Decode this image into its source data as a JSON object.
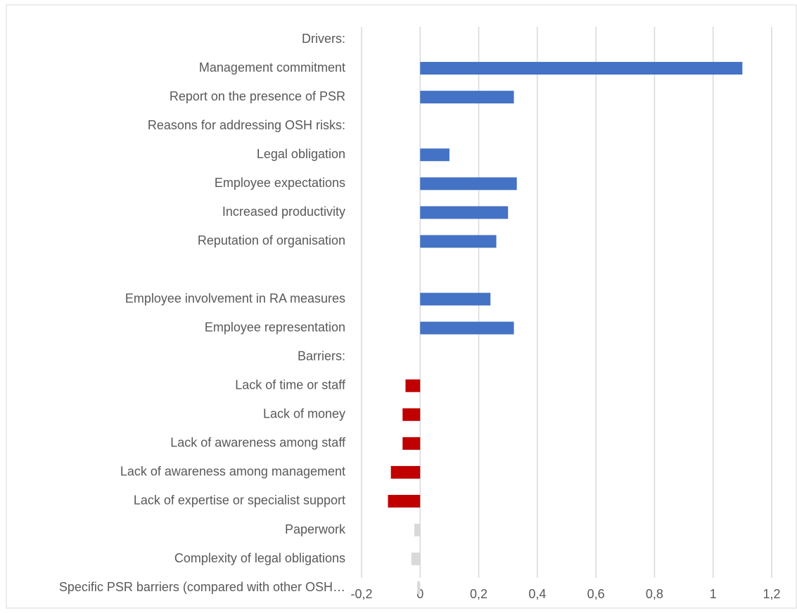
{
  "chart_data": {
    "type": "barh",
    "categories": [
      "Drivers:",
      "Management commitment",
      "Report on the presence of PSR",
      "Reasons for addressing OSH risks:",
      "Legal obligation",
      "Employee expectations",
      "Increased productivity",
      "Reputation of organisation",
      null,
      "Employee involvement in RA measures",
      "Employee representation",
      "Barriers:",
      "Lack of time or staff",
      "Lack of money",
      "Lack of awareness among staff",
      "Lack of awareness among management",
      "Lack of expertise or specialist support",
      "Paperwork",
      "Complexity of legal obligations",
      "Specific PSR barriers (compared with other OSH…"
    ],
    "values": [
      null,
      1.1,
      0.32,
      null,
      0.1,
      0.33,
      0.3,
      0.26,
      null,
      0.24,
      0.32,
      null,
      -0.05,
      -0.06,
      -0.06,
      -0.1,
      -0.11,
      -0.02,
      -0.03,
      -0.01
    ],
    "colors": [
      null,
      "#4472c4",
      "#4472c4",
      null,
      "#4472c4",
      "#4472c4",
      "#4472c4",
      "#4472c4",
      null,
      "#4472c4",
      "#4472c4",
      null,
      "#c00000",
      "#c00000",
      "#c00000",
      "#c00000",
      "#c00000",
      "#d9d9d9",
      "#d9d9d9",
      "#d9d9d9"
    ],
    "xlim": [
      -0.2,
      1.2
    ],
    "xticks": [
      {
        "value": -0.2,
        "label": "-0,2"
      },
      0,
      {
        "value": 0.2,
        "label": "0,2"
      },
      {
        "value": 0.4,
        "label": "0,4"
      },
      {
        "value": 0.6,
        "label": "0,6"
      },
      {
        "value": 0.8,
        "label": "0,8"
      },
      1,
      {
        "value": 1.2,
        "label": "1,2"
      }
    ],
    "grid": true
  }
}
